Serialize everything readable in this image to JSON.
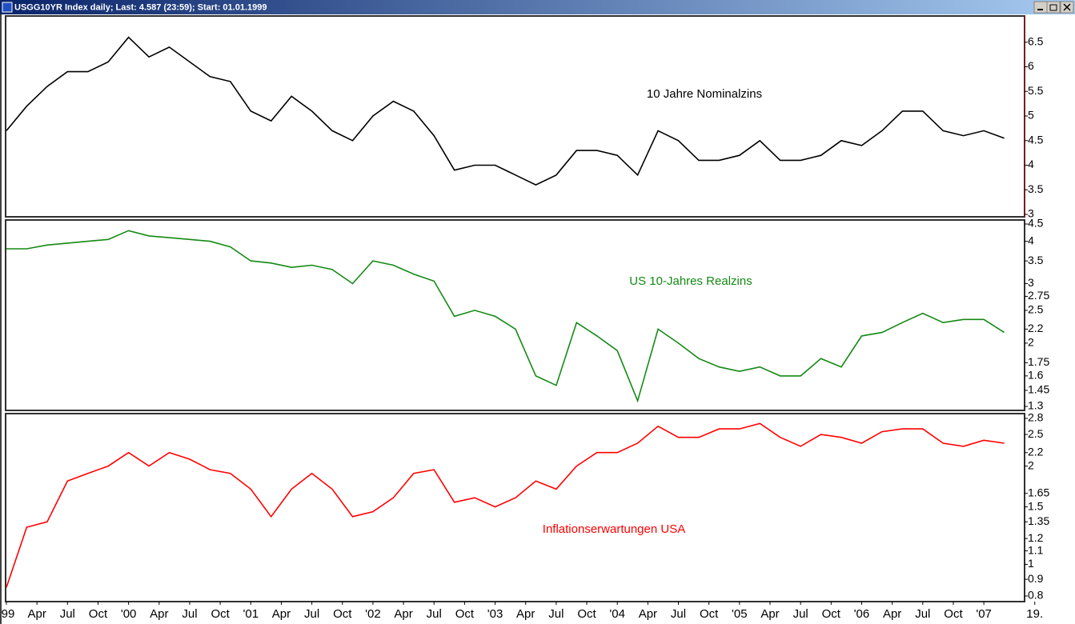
{
  "window": {
    "title": "USGG10YR Index daily; Last: 4.587 (23:59); Start: 01.01.1999"
  },
  "chart_data": [
    {
      "type": "line",
      "annotation": "10 Jahre Nominalzins",
      "color": "#000000",
      "x": [
        "1999-01",
        "1999-03",
        "1999-05",
        "1999-07",
        "1999-09",
        "1999-11",
        "2000-01",
        "2000-03",
        "2000-05",
        "2000-07",
        "2000-09",
        "2000-11",
        "2001-01",
        "2001-03",
        "2001-05",
        "2001-07",
        "2001-09",
        "2001-11",
        "2002-01",
        "2002-03",
        "2002-05",
        "2002-07",
        "2002-09",
        "2002-11",
        "2003-01",
        "2003-03",
        "2003-05",
        "2003-07",
        "2003-09",
        "2003-11",
        "2004-01",
        "2004-03",
        "2004-05",
        "2004-07",
        "2004-09",
        "2004-11",
        "2005-01",
        "2005-03",
        "2005-05",
        "2005-07",
        "2005-09",
        "2005-11",
        "2006-01",
        "2006-03",
        "2006-05",
        "2006-07",
        "2006-09",
        "2006-11",
        "2007-01",
        "2007-03"
      ],
      "values": [
        4.7,
        5.2,
        5.6,
        5.9,
        5.9,
        6.1,
        6.6,
        6.2,
        6.4,
        6.1,
        5.8,
        5.7,
        5.1,
        4.9,
        5.4,
        5.1,
        4.7,
        4.5,
        5.0,
        5.3,
        5.1,
        4.6,
        3.9,
        4.0,
        4.0,
        3.8,
        3.6,
        3.8,
        4.3,
        4.3,
        4.2,
        3.8,
        4.7,
        4.5,
        4.1,
        4.1,
        4.2,
        4.5,
        4.1,
        4.1,
        4.2,
        4.5,
        4.4,
        4.7,
        5.1,
        5.1,
        4.7,
        4.6,
        4.7,
        4.55
      ],
      "xlim": [
        "1999-01",
        "2007-05"
      ],
      "ylim": [
        3,
        7
      ],
      "yticks": [
        3,
        3.5,
        4,
        4.5,
        5,
        5.5,
        6,
        6.5
      ],
      "log": false
    },
    {
      "type": "line",
      "annotation": "US 10-Jahres Realzins",
      "color": "#148a14",
      "x": [
        "1999-01",
        "1999-03",
        "1999-05",
        "1999-07",
        "1999-09",
        "1999-11",
        "2000-01",
        "2000-03",
        "2000-05",
        "2000-07",
        "2000-09",
        "2000-11",
        "2001-01",
        "2001-03",
        "2001-05",
        "2001-07",
        "2001-09",
        "2001-11",
        "2002-01",
        "2002-03",
        "2002-05",
        "2002-07",
        "2002-09",
        "2002-11",
        "2003-01",
        "2003-03",
        "2003-05",
        "2003-07",
        "2003-09",
        "2003-11",
        "2004-01",
        "2004-03",
        "2004-05",
        "2004-07",
        "2004-09",
        "2004-11",
        "2005-01",
        "2005-03",
        "2005-05",
        "2005-07",
        "2005-09",
        "2005-11",
        "2006-01",
        "2006-03",
        "2006-05",
        "2006-07",
        "2006-09",
        "2006-11",
        "2007-01",
        "2007-03"
      ],
      "values": [
        3.8,
        3.8,
        3.9,
        3.95,
        4.0,
        4.05,
        4.3,
        4.15,
        4.1,
        4.05,
        4.0,
        3.85,
        3.5,
        3.45,
        3.35,
        3.4,
        3.3,
        3.0,
        3.5,
        3.4,
        3.2,
        3.05,
        2.4,
        2.5,
        2.4,
        2.2,
        1.6,
        1.5,
        2.3,
        2.1,
        1.9,
        1.35,
        2.2,
        2.0,
        1.8,
        1.7,
        1.65,
        1.7,
        1.6,
        1.6,
        1.8,
        1.7,
        2.1,
        2.15,
        2.3,
        2.45,
        2.3,
        2.35,
        2.35,
        2.15
      ],
      "xlim": [
        "1999-01",
        "2007-05"
      ],
      "ylim": [
        1.3,
        4.5
      ],
      "yticks": [
        1.3,
        1.45,
        1.6,
        1.75,
        2,
        2.2,
        2.5,
        2.75,
        3,
        3.5,
        4,
        4.5
      ],
      "log": true
    },
    {
      "type": "line",
      "annotation": "Inflationserwartungen USA",
      "color": "#ff0000",
      "x": [
        "1999-01",
        "1999-03",
        "1999-05",
        "1999-07",
        "1999-09",
        "1999-11",
        "2000-01",
        "2000-03",
        "2000-05",
        "2000-07",
        "2000-09",
        "2000-11",
        "2001-01",
        "2001-03",
        "2001-05",
        "2001-07",
        "2001-09",
        "2001-11",
        "2002-01",
        "2002-03",
        "2002-05",
        "2002-07",
        "2002-09",
        "2002-11",
        "2003-01",
        "2003-03",
        "2003-05",
        "2003-07",
        "2003-09",
        "2003-11",
        "2004-01",
        "2004-03",
        "2004-05",
        "2004-07",
        "2004-09",
        "2004-11",
        "2005-01",
        "2005-03",
        "2005-05",
        "2005-07",
        "2005-09",
        "2005-11",
        "2006-01",
        "2006-03",
        "2006-05",
        "2006-07",
        "2006-09",
        "2006-11",
        "2007-01",
        "2007-03"
      ],
      "values": [
        0.85,
        1.3,
        1.35,
        1.8,
        1.9,
        2.0,
        2.2,
        2.0,
        2.2,
        2.1,
        1.95,
        1.9,
        1.7,
        1.4,
        1.7,
        1.9,
        1.7,
        1.4,
        1.45,
        1.6,
        1.9,
        1.95,
        1.55,
        1.6,
        1.5,
        1.6,
        1.8,
        1.7,
        2.0,
        2.2,
        2.2,
        2.35,
        2.65,
        2.45,
        2.45,
        2.6,
        2.6,
        2.7,
        2.45,
        2.3,
        2.5,
        2.45,
        2.35,
        2.55,
        2.6,
        2.6,
        2.35,
        2.3,
        2.4,
        2.35
      ],
      "xlim": [
        "1999-01",
        "2007-05"
      ],
      "ylim": [
        0.8,
        2.8
      ],
      "yticks": [
        0.8,
        0.9,
        1,
        1.1,
        1.2,
        1.35,
        1.5,
        1.65,
        2,
        2.2,
        2.5,
        2.8
      ],
      "log": true,
      "xticks": [
        {
          "value": "1999-01",
          "label": "99"
        },
        {
          "value": "1999-04",
          "label": "Apr"
        },
        {
          "value": "1999-07",
          "label": "Jul"
        },
        {
          "value": "1999-10",
          "label": "Oct"
        },
        {
          "value": "2000-01",
          "label": "'00"
        },
        {
          "value": "2000-04",
          "label": "Apr"
        },
        {
          "value": "2000-07",
          "label": "Jul"
        },
        {
          "value": "2000-10",
          "label": "Oct"
        },
        {
          "value": "2001-01",
          "label": "'01"
        },
        {
          "value": "2001-04",
          "label": "Apr"
        },
        {
          "value": "2001-07",
          "label": "Jul"
        },
        {
          "value": "2001-10",
          "label": "Oct"
        },
        {
          "value": "2002-01",
          "label": "'02"
        },
        {
          "value": "2002-04",
          "label": "Apr"
        },
        {
          "value": "2002-07",
          "label": "Jul"
        },
        {
          "value": "2002-10",
          "label": "Oct"
        },
        {
          "value": "2003-01",
          "label": "'03"
        },
        {
          "value": "2003-04",
          "label": "Apr"
        },
        {
          "value": "2003-07",
          "label": "Jul"
        },
        {
          "value": "2003-10",
          "label": "Oct"
        },
        {
          "value": "2004-01",
          "label": "'04"
        },
        {
          "value": "2004-04",
          "label": "Apr"
        },
        {
          "value": "2004-07",
          "label": "Jul"
        },
        {
          "value": "2004-10",
          "label": "Oct"
        },
        {
          "value": "2005-01",
          "label": "'05"
        },
        {
          "value": "2005-04",
          "label": "Apr"
        },
        {
          "value": "2005-07",
          "label": "Jul"
        },
        {
          "value": "2005-10",
          "label": "Oct"
        },
        {
          "value": "2006-01",
          "label": "'06"
        },
        {
          "value": "2006-04",
          "label": "Apr"
        },
        {
          "value": "2006-07",
          "label": "Jul"
        },
        {
          "value": "2006-10",
          "label": "Oct"
        },
        {
          "value": "2007-01",
          "label": "'07"
        },
        {
          "value": "2007-06",
          "label": "19."
        }
      ]
    }
  ]
}
